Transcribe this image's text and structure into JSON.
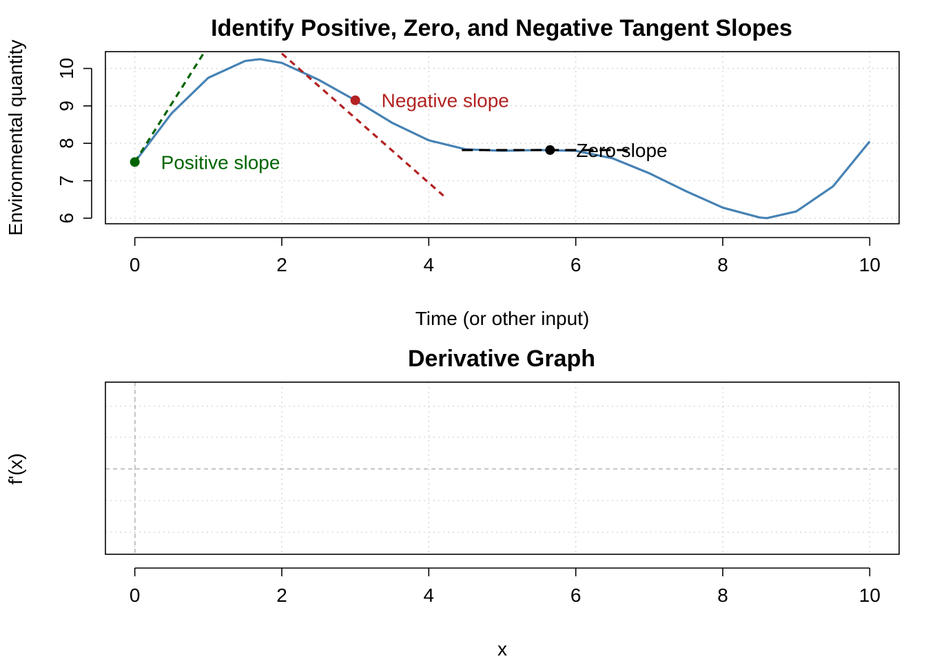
{
  "chart_data": [
    {
      "type": "line",
      "title": "Identify Positive, Zero, and Negative Tangent Slopes",
      "xlabel": "Time (or other input)",
      "ylabel": "Environmental quantity",
      "xlim": [
        -0.4,
        10.4
      ],
      "ylim": [
        5.85,
        10.45
      ],
      "x_ticks": [
        "0",
        "2",
        "4",
        "6",
        "8",
        "10"
      ],
      "y_ticks": [
        "6",
        "7",
        "8",
        "9",
        "10"
      ],
      "grid": true,
      "curve_color": "#4682B4",
      "curve": {
        "x": [
          0,
          0.5,
          1,
          1.5,
          1.7,
          2,
          2.5,
          3,
          3.5,
          4,
          4.5,
          5,
          5.5,
          6,
          6.5,
          7,
          7.5,
          8,
          8.5,
          8.6,
          9,
          9.5,
          10
        ],
        "y": [
          7.5,
          8.8,
          9.75,
          10.2,
          10.25,
          10.15,
          9.7,
          9.15,
          8.55,
          8.08,
          7.84,
          7.8,
          7.82,
          7.8,
          7.6,
          7.2,
          6.72,
          6.28,
          6.02,
          6.0,
          6.18,
          6.85,
          8.05
        ]
      },
      "points": [
        {
          "x": 0,
          "y": 7.5,
          "label": "Positive slope",
          "color": "#006400"
        },
        {
          "x": 3,
          "y": 9.15,
          "label": "Negative slope",
          "color": "#B22222"
        },
        {
          "x": 5.65,
          "y": 7.82,
          "label": "Zero slope",
          "color": "#000000"
        }
      ],
      "tangents": [
        {
          "x": [
            0,
            0.95
          ],
          "y": [
            7.5,
            10.45
          ],
          "color": "#006400"
        },
        {
          "x": [
            2.0,
            4.2
          ],
          "y": [
            10.4,
            6.6
          ],
          "color": "#B22222"
        },
        {
          "x": [
            4.45,
            6.75
          ],
          "y": [
            7.82,
            7.82
          ],
          "color": "#000000"
        }
      ]
    },
    {
      "type": "line",
      "title": "Derivative Graph",
      "xlabel": "x",
      "ylabel": "f'(x)",
      "xlim": [
        -0.4,
        10.4
      ],
      "x_ticks": [
        "0",
        "2",
        "4",
        "6",
        "8",
        "10"
      ],
      "grid": true,
      "reference_lines": {
        "x": 0,
        "y": 0
      }
    }
  ]
}
